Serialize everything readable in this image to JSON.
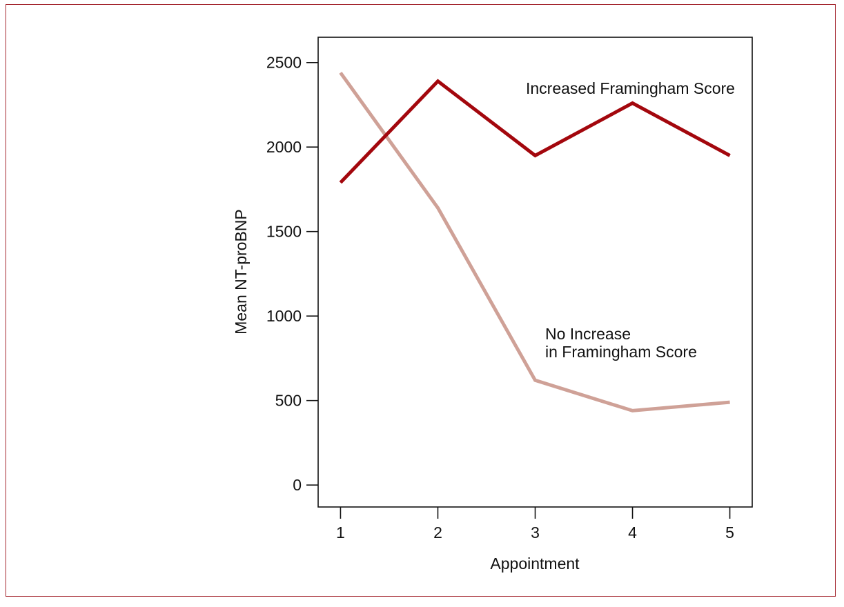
{
  "chart_data": {
    "type": "line",
    "xlabel": "Appointment",
    "ylabel": "Mean NT-proBNP",
    "x": [
      1,
      2,
      3,
      4,
      5
    ],
    "xlim": [
      0.77,
      5.23
    ],
    "ylim": [
      -130,
      2650
    ],
    "yticks": [
      0,
      500,
      1000,
      1500,
      2000,
      2500
    ],
    "xticks": [
      1,
      2,
      3,
      4,
      5
    ],
    "grid": false,
    "series": [
      {
        "name": "Increased Framingham Score",
        "values": [
          1790,
          2390,
          1950,
          2260,
          1950
        ],
        "color": "#a3070d"
      },
      {
        "name": "No Increase in Framingham Score",
        "name_lines": [
          "No Increase",
          "in Framingham Score"
        ],
        "values": [
          2440,
          1640,
          620,
          440,
          490
        ],
        "color": "#cfa197"
      }
    ],
    "frame_color": "#a3242c"
  }
}
